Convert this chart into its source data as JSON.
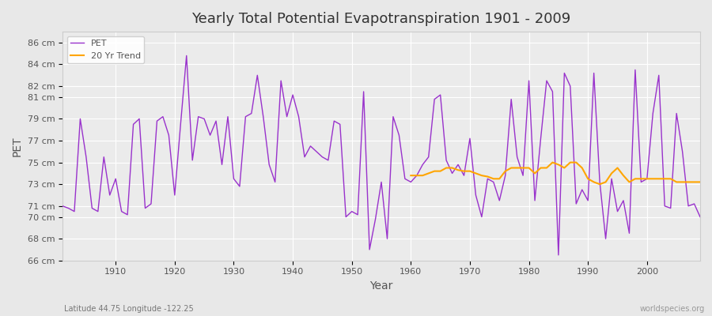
{
  "title": "Yearly Total Potential Evapotranspiration 1901 - 2009",
  "xlabel": "Year",
  "ylabel": "PET",
  "subtitle": "Latitude 44.75 Longitude -122.25",
  "watermark": "worldspecies.org",
  "ylim": [
    66,
    87
  ],
  "xlim": [
    1901,
    2009
  ],
  "yticks": [
    66,
    68,
    70,
    71,
    73,
    75,
    77,
    79,
    81,
    82,
    84,
    86
  ],
  "ytick_labels": [
    "66 cm",
    "68 cm",
    "70 cm",
    "71 cm",
    "73 cm",
    "75 cm",
    "77 cm",
    "79 cm",
    "81 cm",
    "82 cm",
    "84 cm",
    "86 cm"
  ],
  "pet_color": "#9932CC",
  "trend_color": "#FFA500",
  "bg_color": "#E8E8E8",
  "plot_bg_color": "#EBEBEB",
  "grid_color": "#FFFFFF",
  "pet_years": [
    1901,
    1902,
    1903,
    1904,
    1905,
    1906,
    1907,
    1908,
    1909,
    1910,
    1911,
    1912,
    1913,
    1914,
    1915,
    1916,
    1917,
    1918,
    1919,
    1920,
    1921,
    1922,
    1923,
    1924,
    1925,
    1926,
    1927,
    1928,
    1929,
    1930,
    1931,
    1932,
    1933,
    1934,
    1935,
    1936,
    1937,
    1938,
    1939,
    1940,
    1941,
    1942,
    1943,
    1944,
    1945,
    1946,
    1947,
    1948,
    1949,
    1950,
    1951,
    1952,
    1953,
    1954,
    1955,
    1956,
    1957,
    1958,
    1959,
    1960,
    1961,
    1962,
    1963,
    1964,
    1965,
    1966,
    1967,
    1968,
    1969,
    1970,
    1971,
    1972,
    1973,
    1974,
    1975,
    1976,
    1977,
    1978,
    1979,
    1980,
    1981,
    1982,
    1983,
    1984,
    1985,
    1986,
    1987,
    1988,
    1989,
    1990,
    1991,
    1992,
    1993,
    1994,
    1995,
    1996,
    1997,
    1998,
    1999,
    2000,
    2001,
    2002,
    2003,
    2004,
    2005,
    2006,
    2007,
    2008,
    2009
  ],
  "pet_values": [
    71.0,
    70.8,
    70.5,
    79.0,
    75.5,
    70.8,
    70.5,
    75.5,
    72.0,
    73.5,
    70.5,
    70.2,
    78.5,
    79.0,
    70.8,
    71.2,
    78.8,
    79.2,
    77.5,
    72.0,
    78.5,
    84.8,
    75.2,
    79.2,
    79.0,
    77.5,
    78.8,
    74.8,
    79.2,
    73.5,
    72.8,
    79.2,
    79.5,
    83.0,
    79.2,
    74.8,
    73.2,
    82.5,
    79.2,
    81.2,
    79.2,
    75.5,
    76.5,
    76.0,
    75.5,
    75.2,
    78.8,
    78.5,
    70.0,
    70.5,
    70.2,
    81.5,
    67.0,
    69.8,
    73.2,
    68.0,
    79.2,
    77.5,
    73.5,
    73.2,
    73.8,
    74.8,
    75.5,
    80.8,
    81.2,
    75.2,
    74.0,
    74.8,
    73.8,
    77.2,
    72.0,
    70.0,
    73.5,
    73.2,
    71.5,
    73.8,
    80.8,
    75.5,
    73.8,
    82.5,
    71.5,
    77.2,
    82.5,
    81.5,
    66.5,
    83.2,
    82.0,
    71.2,
    72.5,
    71.5,
    83.2,
    73.2,
    68.0,
    73.5,
    70.5,
    71.5,
    68.5,
    83.5,
    73.2,
    73.5,
    79.5,
    83.0,
    71.0,
    70.8,
    79.5,
    76.0,
    71.0,
    71.2,
    70.0
  ],
  "trend_years": [
    1960,
    1961,
    1962,
    1963,
    1964,
    1965,
    1966,
    1967,
    1968,
    1969,
    1970,
    1971,
    1972,
    1973,
    1974,
    1975,
    1976,
    1977,
    1978,
    1979,
    1980,
    1981,
    1982,
    1983,
    1984,
    1985,
    1986,
    1987,
    1988,
    1989,
    1990,
    1991,
    1992,
    1993,
    1994,
    1995,
    1996,
    1997,
    1998,
    1999,
    2000,
    2001,
    2002,
    2003,
    2004,
    2005,
    2006,
    2007,
    2008,
    2009
  ],
  "trend_values": [
    73.8,
    73.8,
    73.8,
    74.0,
    74.2,
    74.2,
    74.5,
    74.5,
    74.3,
    74.2,
    74.2,
    74.0,
    73.8,
    73.7,
    73.5,
    73.5,
    74.2,
    74.5,
    74.5,
    74.5,
    74.5,
    74.0,
    74.5,
    74.5,
    75.0,
    74.8,
    74.5,
    75.0,
    75.0,
    74.5,
    73.5,
    73.2,
    73.0,
    73.2,
    74.0,
    74.5,
    73.8,
    73.2,
    73.5,
    73.5,
    73.5,
    73.5,
    73.5,
    73.5,
    73.5,
    73.2,
    73.2,
    73.2,
    73.2,
    73.2
  ]
}
